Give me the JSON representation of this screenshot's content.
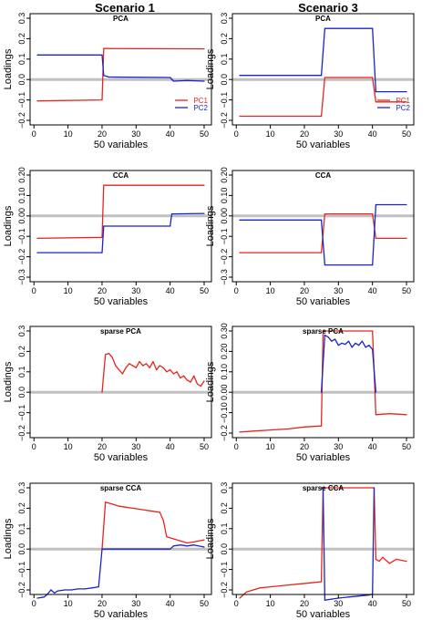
{
  "figure": {
    "columns": [
      "Scenario 1",
      "Scenario 3"
    ]
  },
  "colors": {
    "pc1": "#e8241c",
    "pc2": "#1a24c8",
    "zero": "#c0c0c0",
    "axis": "#000000"
  },
  "chart_data": [
    {
      "type": "line",
      "title": "PCA",
      "xlabel": "50 variables",
      "ylabel": "Loadings",
      "xlim": [
        1,
        50
      ],
      "ylim": [
        -0.2,
        0.3
      ],
      "xticks": [
        0,
        10,
        20,
        30,
        40,
        50
      ],
      "yticks": [
        -0.2,
        -0.1,
        0.0,
        0.1,
        0.2,
        0.3
      ],
      "ytick_labels": [
        "−0.2",
        "−0.1",
        "0.0",
        "0.1",
        "0.2",
        "0.3"
      ],
      "legend": {
        "position": "right",
        "entries": [
          "PC1",
          "PC2"
        ]
      },
      "series": [
        {
          "name": "PC1",
          "color": "#e8241c",
          "x": [
            1,
            20,
            20.5,
            50
          ],
          "y": [
            -0.105,
            -0.1,
            0.152,
            0.15
          ]
        },
        {
          "name": "PC2",
          "color": "#1a24c8",
          "x": [
            1,
            20,
            20.5,
            22,
            40,
            41,
            45,
            50
          ],
          "y": [
            0.12,
            0.12,
            0.02,
            0.012,
            0.01,
            -0.008,
            -0.005,
            -0.008
          ]
        }
      ]
    },
    {
      "type": "line",
      "title": "PCA",
      "xlabel": "50 variables",
      "ylabel": "Loadings",
      "xlim": [
        1,
        50
      ],
      "ylim": [
        -0.2,
        0.3
      ],
      "xticks": [
        0,
        10,
        20,
        30,
        40,
        50
      ],
      "yticks": [
        -0.2,
        -0.1,
        0.0,
        0.1,
        0.2,
        0.3
      ],
      "ytick_labels": [
        "−0.2",
        "−0.1",
        "0.0",
        "0.1",
        "0.2",
        "0.3"
      ],
      "legend": {
        "position": "right",
        "entries": [
          "PC1",
          "PC2"
        ]
      },
      "series": [
        {
          "name": "PC1",
          "color": "#e8241c",
          "x": [
            1,
            25,
            26,
            40,
            41,
            50
          ],
          "y": [
            -0.18,
            -0.18,
            0.01,
            0.01,
            -0.11,
            -0.11
          ]
        },
        {
          "name": "PC2",
          "color": "#1a24c8",
          "x": [
            1,
            25,
            26,
            40,
            41,
            50
          ],
          "y": [
            0.02,
            0.02,
            0.25,
            0.25,
            -0.06,
            -0.06
          ]
        }
      ]
    },
    {
      "type": "line",
      "title": "CCA",
      "xlabel": "50 variables",
      "ylabel": "Loadings",
      "xlim": [
        1,
        50
      ],
      "ylim": [
        -0.3,
        0.2
      ],
      "xticks": [
        0,
        10,
        20,
        30,
        40,
        50
      ],
      "yticks": [
        -0.3,
        -0.2,
        -0.1,
        0.0,
        0.1,
        0.2
      ],
      "ytick_labels": [
        "−0.3",
        "−0.2",
        "−0.1",
        "0.00",
        "0.10",
        "0.20"
      ],
      "series": [
        {
          "name": "PC1",
          "color": "#e8241c",
          "x": [
            1,
            20,
            20.5,
            50
          ],
          "y": [
            -0.11,
            -0.105,
            0.15,
            0.15
          ]
        },
        {
          "name": "PC2",
          "color": "#1a24c8",
          "x": [
            1,
            20,
            20.5,
            40,
            40.5,
            50
          ],
          "y": [
            -0.18,
            -0.18,
            -0.05,
            -0.05,
            0.01,
            0.012
          ]
        }
      ]
    },
    {
      "type": "line",
      "title": "CCA",
      "xlabel": "50 variables",
      "ylabel": "Loadings",
      "xlim": [
        1,
        50
      ],
      "ylim": [
        -0.3,
        0.2
      ],
      "xticks": [
        0,
        10,
        20,
        30,
        40,
        50
      ],
      "yticks": [
        -0.3,
        -0.2,
        -0.1,
        0.0,
        0.1,
        0.2
      ],
      "ytick_labels": [
        "−0.3",
        "−0.2",
        "−0.1",
        "0.00",
        "0.10",
        "0.20"
      ],
      "series": [
        {
          "name": "PC1",
          "color": "#e8241c",
          "x": [
            1,
            25,
            26,
            40,
            41,
            50
          ],
          "y": [
            -0.18,
            -0.18,
            0.01,
            0.01,
            -0.11,
            -0.11
          ]
        },
        {
          "name": "PC2",
          "color": "#1a24c8",
          "x": [
            1,
            25,
            26,
            40,
            41,
            50
          ],
          "y": [
            -0.02,
            -0.02,
            -0.24,
            -0.24,
            0.055,
            0.055
          ]
        }
      ]
    },
    {
      "type": "line",
      "title": "sparse PCA",
      "xlabel": "50 variables",
      "ylabel": "Loadings",
      "xlim": [
        1,
        50
      ],
      "ylim": [
        -0.2,
        0.3
      ],
      "xticks": [
        0,
        10,
        20,
        30,
        40,
        50
      ],
      "yticks": [
        -0.2,
        -0.1,
        0.0,
        0.1,
        0.2,
        0.3
      ],
      "ytick_labels": [
        "−0.2",
        "−0.1",
        "0.0",
        "0.1",
        "0.2",
        "0.3"
      ],
      "series": [
        {
          "name": "PC1",
          "color": "#e8241c",
          "x": [
            20,
            21,
            22,
            23,
            24,
            25,
            26,
            27,
            28,
            29,
            30,
            31,
            32,
            33,
            34,
            35,
            36,
            37,
            38,
            39,
            40,
            41,
            42,
            43,
            44,
            45,
            46,
            47,
            48,
            49,
            50
          ],
          "y": [
            0.0,
            0.185,
            0.19,
            0.17,
            0.13,
            0.11,
            0.09,
            0.12,
            0.14,
            0.13,
            0.12,
            0.15,
            0.13,
            0.14,
            0.12,
            0.15,
            0.11,
            0.13,
            0.12,
            0.1,
            0.11,
            0.09,
            0.1,
            0.07,
            0.08,
            0.06,
            0.05,
            0.08,
            0.04,
            0.03,
            0.055
          ]
        }
      ]
    },
    {
      "type": "line",
      "title": "sparse PCA",
      "xlabel": "50 variables",
      "ylabel": "Loadings",
      "xlim": [
        1,
        50
      ],
      "ylim": [
        -0.2,
        0.3
      ],
      "xticks": [
        0,
        10,
        20,
        30,
        40,
        50
      ],
      "yticks": [
        -0.2,
        -0.1,
        0.0,
        0.1,
        0.2,
        0.3
      ],
      "ytick_labels": [
        "−0.2",
        "−0.10",
        "0.00",
        "0.10",
        "0.20",
        "0.30"
      ],
      "series": [
        {
          "name": "PC1",
          "color": "#e8241c",
          "x": [
            1,
            5,
            10,
            15,
            20,
            25,
            25.5,
            26,
            40,
            41,
            45,
            50
          ],
          "y": [
            -0.195,
            -0.19,
            -0.185,
            -0.18,
            -0.17,
            -0.165,
            0.3,
            0.3,
            0.3,
            -0.11,
            -0.105,
            -0.11
          ]
        },
        {
          "name": "PC2",
          "color": "#1a24c8",
          "x": [
            25,
            26,
            27,
            28,
            29,
            30,
            31,
            32,
            33,
            34,
            35,
            36,
            37,
            38,
            39,
            40,
            41
          ],
          "y": [
            0.0,
            0.28,
            0.27,
            0.25,
            0.26,
            0.23,
            0.24,
            0.235,
            0.25,
            0.22,
            0.24,
            0.23,
            0.25,
            0.22,
            0.23,
            0.21,
            0.0
          ]
        }
      ]
    },
    {
      "type": "line",
      "title": "sparse CCA",
      "xlabel": "50 variables",
      "ylabel": "Loadings",
      "xlim": [
        1,
        50
      ],
      "ylim": [
        -0.2,
        0.3
      ],
      "xticks": [
        0,
        10,
        20,
        30,
        40,
        50
      ],
      "yticks": [
        -0.2,
        -0.1,
        0.0,
        0.1,
        0.2,
        0.3
      ],
      "ytick_labels": [
        "−0.2",
        "−0.1",
        "0.0",
        "0.1",
        "0.2",
        "0.3"
      ],
      "series": [
        {
          "name": "PC1",
          "color": "#e8241c",
          "x": [
            20,
            21,
            23,
            25,
            27,
            29,
            31,
            33,
            35,
            37,
            38,
            39,
            41,
            43,
            45,
            47,
            50
          ],
          "y": [
            0.0,
            0.23,
            0.22,
            0.21,
            0.205,
            0.2,
            0.195,
            0.19,
            0.185,
            0.18,
            0.14,
            0.06,
            0.05,
            0.04,
            0.03,
            0.035,
            0.045
          ]
        },
        {
          "name": "PC2",
          "color": "#1a24c8",
          "x": [
            1,
            3,
            4,
            5,
            6,
            7,
            9,
            11,
            13,
            15,
            17,
            19,
            20,
            40,
            41,
            43,
            45,
            47,
            50
          ],
          "y": [
            -0.24,
            -0.235,
            -0.22,
            -0.2,
            -0.215,
            -0.205,
            -0.2,
            -0.2,
            -0.195,
            -0.195,
            -0.19,
            -0.185,
            0.0,
            0.0,
            0.015,
            0.02,
            0.015,
            0.02,
            0.01
          ]
        }
      ]
    },
    {
      "type": "line",
      "title": "sparse CCA",
      "xlabel": "50 variables",
      "ylabel": "Loadings",
      "xlim": [
        1,
        50
      ],
      "ylim": [
        -0.2,
        0.3
      ],
      "xticks": [
        0,
        10,
        20,
        30,
        40,
        50
      ],
      "yticks": [
        -0.2,
        -0.1,
        0.0,
        0.1,
        0.2,
        0.3
      ],
      "ytick_labels": [
        "−0.2",
        "−0.1",
        "0.0",
        "0.1",
        "0.2",
        "0.3"
      ],
      "series": [
        {
          "name": "PC1",
          "color": "#e8241c",
          "x": [
            1,
            3,
            5,
            7,
            10,
            13,
            16,
            19,
            22,
            25,
            25.5,
            26,
            40,
            40.5,
            41,
            42,
            43,
            45,
            47,
            50
          ],
          "y": [
            -0.24,
            -0.21,
            -0.2,
            -0.19,
            -0.185,
            -0.18,
            -0.175,
            -0.17,
            -0.165,
            -0.16,
            0.3,
            0.3,
            0.3,
            0.3,
            -0.05,
            -0.06,
            -0.04,
            -0.07,
            -0.05,
            -0.06
          ]
        },
        {
          "name": "PC2",
          "color": "#1a24c8",
          "x": [
            25,
            25.5,
            26,
            28,
            30,
            33,
            36,
            39,
            40,
            40.5
          ],
          "y": [
            0.3,
            0.3,
            -0.25,
            -0.245,
            -0.24,
            -0.235,
            -0.23,
            -0.225,
            -0.22,
            0.3
          ]
        }
      ]
    }
  ]
}
